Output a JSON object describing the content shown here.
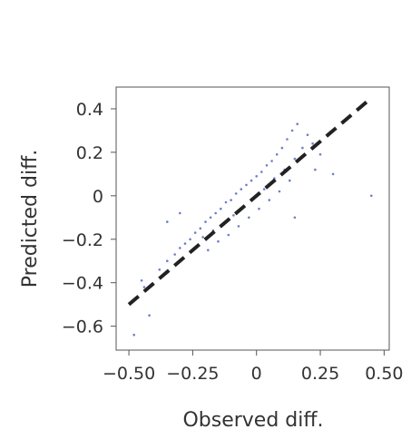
{
  "chart_data": {
    "type": "scatter",
    "title": "",
    "xlabel": "Observed diff.",
    "ylabel": "Predicted diff.",
    "xlim": [
      -0.55,
      0.52
    ],
    "ylim": [
      -0.71,
      0.5
    ],
    "x_ticks": [
      -0.5,
      -0.25,
      0,
      0.25,
      0.5
    ],
    "x_tick_labels": [
      "−0.50",
      "−0.25",
      "0",
      "0.25",
      "0.50"
    ],
    "y_ticks": [
      -0.6,
      -0.4,
      -0.2,
      0,
      0.2,
      0.4
    ],
    "y_tick_labels": [
      "−0.6",
      "−0.4",
      "−0.2",
      "0",
      "0.2",
      "0.4"
    ],
    "grid": false,
    "series": [
      {
        "color": "#6b7fc9",
        "points": [
          [
            -0.45,
            -0.39
          ],
          [
            -0.44,
            -0.42
          ],
          [
            -0.38,
            -0.34
          ],
          [
            -0.35,
            -0.3
          ],
          [
            -0.32,
            -0.27
          ],
          [
            -0.3,
            -0.24
          ],
          [
            -0.28,
            -0.22
          ],
          [
            -0.26,
            -0.2
          ],
          [
            -0.24,
            -0.17
          ],
          [
            -0.22,
            -0.15
          ],
          [
            -0.21,
            -0.19
          ],
          [
            -0.2,
            -0.12
          ],
          [
            -0.19,
            -0.25
          ],
          [
            -0.18,
            -0.1
          ],
          [
            -0.17,
            -0.16
          ],
          [
            -0.16,
            -0.08
          ],
          [
            -0.15,
            -0.21
          ],
          [
            -0.14,
            -0.06
          ],
          [
            -0.13,
            -0.13
          ],
          [
            -0.12,
            -0.03
          ],
          [
            -0.11,
            -0.18
          ],
          [
            -0.1,
            -0.02
          ],
          [
            -0.09,
            -0.09
          ],
          [
            -0.08,
            0.01
          ],
          [
            -0.07,
            -0.14
          ],
          [
            -0.06,
            0.03
          ],
          [
            -0.05,
            -0.05
          ],
          [
            -0.04,
            0.05
          ],
          [
            -0.03,
            -0.1
          ],
          [
            -0.02,
            0.07
          ],
          [
            -0.01,
            -0.01
          ],
          [
            0.0,
            0.09
          ],
          [
            0.01,
            -0.06
          ],
          [
            0.02,
            0.11
          ],
          [
            0.03,
            0.03
          ],
          [
            0.04,
            0.14
          ],
          [
            0.05,
            -0.02
          ],
          [
            0.06,
            0.16
          ],
          [
            0.07,
            0.08
          ],
          [
            0.08,
            0.19
          ],
          [
            0.09,
            0.02
          ],
          [
            0.1,
            0.22
          ],
          [
            0.11,
            0.12
          ],
          [
            0.12,
            0.26
          ],
          [
            0.13,
            0.07
          ],
          [
            0.14,
            0.3
          ],
          [
            0.15,
            0.17
          ],
          [
            0.16,
            0.33
          ],
          [
            0.18,
            0.22
          ],
          [
            0.2,
            0.28
          ],
          [
            0.22,
            0.24
          ],
          [
            0.25,
            0.19
          ],
          [
            0.3,
            0.1
          ],
          [
            0.45,
            0.0
          ],
          [
            0.23,
            0.12
          ],
          [
            -0.42,
            -0.55
          ],
          [
            -0.48,
            -0.64
          ],
          [
            -0.3,
            -0.08
          ],
          [
            -0.35,
            -0.12
          ],
          [
            0.15,
            -0.1
          ]
        ]
      }
    ],
    "reference_line": {
      "from": [
        -0.5,
        -0.5
      ],
      "to": [
        0.45,
        0.45
      ],
      "color": "#222222",
      "style": "dashed"
    }
  }
}
